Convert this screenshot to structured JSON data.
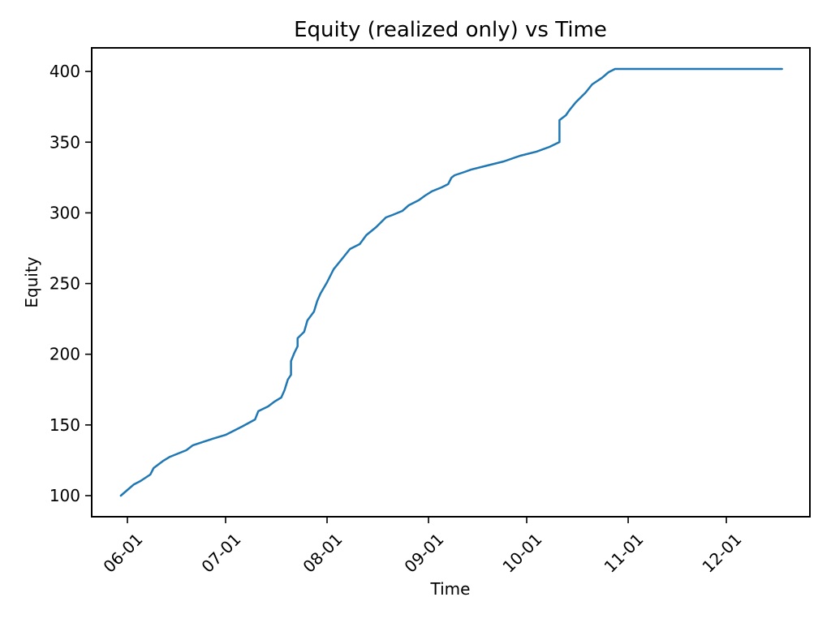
{
  "figure": {
    "background_color": "#ffffff",
    "frame_color": "#000000",
    "text_color": "#000000"
  },
  "chart_data": {
    "type": "line",
    "title": "Equity (realized only) vs Time",
    "xlabel": "Time",
    "ylabel": "Equity",
    "grid": false,
    "legend_position": "none",
    "line_color": "#1f77b4",
    "line_width": 2.5,
    "x_tick_labels": [
      "06-01",
      "07-01",
      "08-01",
      "09-01",
      "10-01",
      "11-01",
      "12-01"
    ],
    "y_tick_labels": [
      "100",
      "150",
      "200",
      "250",
      "300",
      "350",
      "400"
    ],
    "y_tick_values": [
      100,
      150,
      200,
      250,
      300,
      350,
      400
    ],
    "ylim": [
      85,
      417
    ],
    "xlim": [
      "05-20",
      "12-28"
    ],
    "x_axis_unit": "month-day dates",
    "series": [
      {
        "name": "Equity (realized only)",
        "points": [
          [
            "05-30",
            100.0
          ],
          [
            "06-01",
            104.0
          ],
          [
            "06-03",
            108.0
          ],
          [
            "06-05",
            110.3
          ],
          [
            "06-08",
            114.9
          ],
          [
            "06-09",
            119.5
          ],
          [
            "06-12",
            124.7
          ],
          [
            "06-14",
            127.5
          ],
          [
            "06-19",
            132.1
          ],
          [
            "06-21",
            135.6
          ],
          [
            "06-27",
            140.2
          ],
          [
            "07-01",
            143.0
          ],
          [
            "07-06",
            148.8
          ],
          [
            "07-10",
            153.9
          ],
          [
            "07-11",
            159.7
          ],
          [
            "07-14",
            163.1
          ],
          [
            "07-16",
            166.6
          ],
          [
            "07-18",
            169.4
          ],
          [
            "07-19",
            174.6
          ],
          [
            "07-20",
            182.0
          ],
          [
            "07-21",
            185.5
          ],
          [
            "07-21",
            195.2
          ],
          [
            "07-22",
            201.0
          ],
          [
            "07-23",
            205.6
          ],
          [
            "07-23",
            211.3
          ],
          [
            "07-25",
            215.9
          ],
          [
            "07-26",
            223.9
          ],
          [
            "07-28",
            230.2
          ],
          [
            "07-29",
            237.7
          ],
          [
            "07-30",
            242.9
          ],
          [
            "08-01",
            250.9
          ],
          [
            "08-03",
            260.1
          ],
          [
            "08-06",
            268.7
          ],
          [
            "08-08",
            274.4
          ],
          [
            "08-11",
            277.9
          ],
          [
            "08-13",
            284.2
          ],
          [
            "08-16",
            289.9
          ],
          [
            "08-19",
            296.8
          ],
          [
            "08-21",
            298.5
          ],
          [
            "08-24",
            301.4
          ],
          [
            "08-26",
            305.4
          ],
          [
            "08-29",
            308.9
          ],
          [
            "08-31",
            312.3
          ],
          [
            "09-02",
            315.2
          ],
          [
            "09-05",
            318.0
          ],
          [
            "09-07",
            320.3
          ],
          [
            "09-08",
            324.9
          ],
          [
            "09-09",
            326.6
          ],
          [
            "09-12",
            328.9
          ],
          [
            "09-14",
            330.6
          ],
          [
            "09-19",
            333.5
          ],
          [
            "09-24",
            336.4
          ],
          [
            "09-29",
            340.4
          ],
          [
            "10-04",
            343.3
          ],
          [
            "10-08",
            346.7
          ],
          [
            "10-11",
            350.1
          ],
          [
            "10-11",
            365.6
          ],
          [
            "10-13",
            369.1
          ],
          [
            "10-14",
            372.5
          ],
          [
            "10-16",
            378.2
          ],
          [
            "10-19",
            385.1
          ],
          [
            "10-21",
            390.9
          ],
          [
            "10-24",
            395.5
          ],
          [
            "10-26",
            399.5
          ],
          [
            "10-28",
            401.8
          ],
          [
            "12-18",
            401.8
          ]
        ]
      }
    ]
  }
}
